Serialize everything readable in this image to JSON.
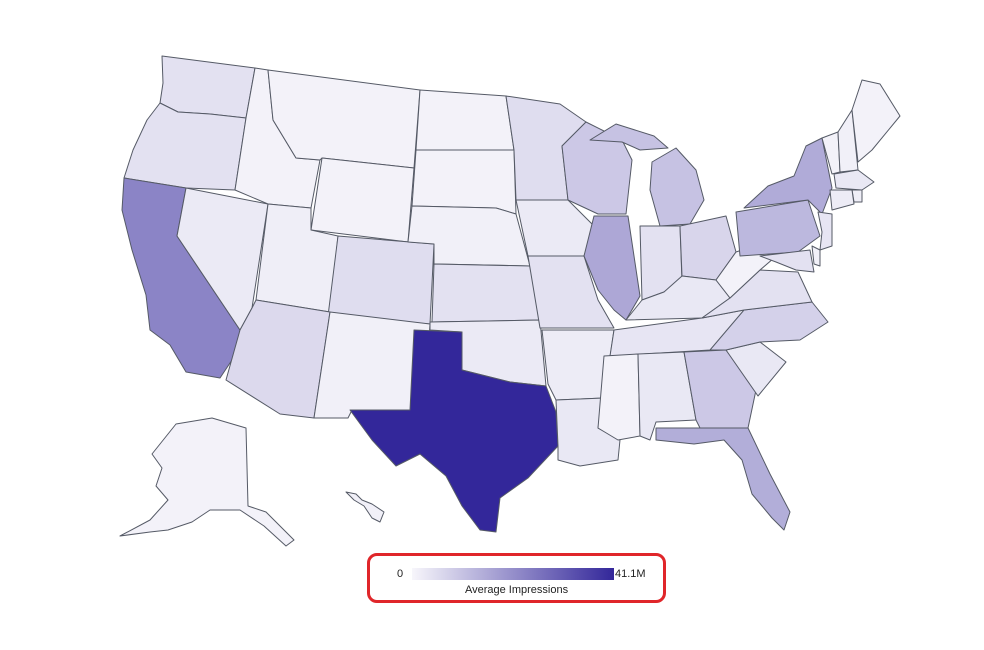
{
  "legend": {
    "min_label": "0",
    "max_label": "41.1M",
    "title": "Average Impressions",
    "color_low": "#f7f6fb",
    "color_high": "#33279a",
    "highlight_border": "#e0262a"
  },
  "scale": {
    "min": 0,
    "max": 41100000
  },
  "states": [
    {
      "id": "WA",
      "value": 0.1
    },
    {
      "id": "OR",
      "value": 0.1
    },
    {
      "id": "CA",
      "value": 0.55
    },
    {
      "id": "NV",
      "value": 0.06
    },
    {
      "id": "ID",
      "value": 0.02
    },
    {
      "id": "MT",
      "value": 0.02
    },
    {
      "id": "WY",
      "value": 0.02
    },
    {
      "id": "UT",
      "value": 0.04
    },
    {
      "id": "AZ",
      "value": 0.14
    },
    {
      "id": "CO",
      "value": 0.12
    },
    {
      "id": "NM",
      "value": 0.03
    },
    {
      "id": "ND",
      "value": 0.02
    },
    {
      "id": "SD",
      "value": 0.02
    },
    {
      "id": "NE",
      "value": 0.03
    },
    {
      "id": "KS",
      "value": 0.1
    },
    {
      "id": "OK",
      "value": 0.06
    },
    {
      "id": "TX",
      "value": 1.0
    },
    {
      "id": "MN",
      "value": 0.12
    },
    {
      "id": "IA",
      "value": 0.06
    },
    {
      "id": "MO",
      "value": 0.1
    },
    {
      "id": "AR",
      "value": 0.05
    },
    {
      "id": "LA",
      "value": 0.07
    },
    {
      "id": "WI",
      "value": 0.22
    },
    {
      "id": "IL",
      "value": 0.38
    },
    {
      "id": "MI",
      "value": 0.25
    },
    {
      "id": "IN",
      "value": 0.1
    },
    {
      "id": "OH",
      "value": 0.16
    },
    {
      "id": "KY",
      "value": 0.07
    },
    {
      "id": "TN",
      "value": 0.08
    },
    {
      "id": "MS",
      "value": 0.02
    },
    {
      "id": "AL",
      "value": 0.07
    },
    {
      "id": "GA",
      "value": 0.22
    },
    {
      "id": "FL",
      "value": 0.35
    },
    {
      "id": "SC",
      "value": 0.07
    },
    {
      "id": "NC",
      "value": 0.18
    },
    {
      "id": "VA",
      "value": 0.1
    },
    {
      "id": "WV",
      "value": 0.02
    },
    {
      "id": "PA",
      "value": 0.3
    },
    {
      "id": "NY",
      "value": 0.36
    },
    {
      "id": "VT",
      "value": 0.02
    },
    {
      "id": "NH",
      "value": 0.03
    },
    {
      "id": "ME",
      "value": 0.02
    },
    {
      "id": "MA",
      "value": 0.07
    },
    {
      "id": "CT",
      "value": 0.05
    },
    {
      "id": "RI",
      "value": 0.04
    },
    {
      "id": "NJ",
      "value": 0.08
    },
    {
      "id": "DE",
      "value": 0.03
    },
    {
      "id": "MD",
      "value": 0.1
    },
    {
      "id": "AK",
      "value": 0.02
    },
    {
      "id": "HI",
      "value": 0.03
    }
  ]
}
